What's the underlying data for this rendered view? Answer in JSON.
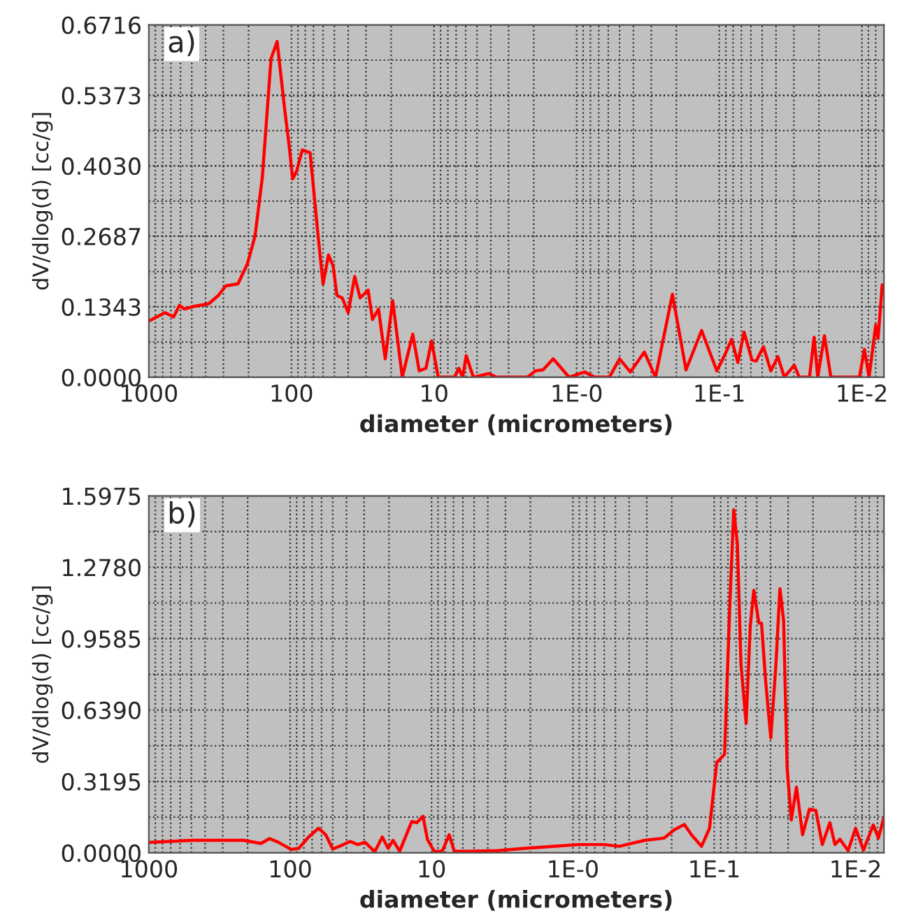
{
  "chart_data": [
    {
      "type": "line",
      "annotations": [
        "a)"
      ],
      "xlabel": "diameter (micrometers)",
      "ylabel": "dV/dlog(d) [cc/g]",
      "log": "x",
      "grid": true,
      "legend": false,
      "xlim": [
        1000,
        0.007
      ],
      "xticks": [
        1000,
        100,
        10,
        {
          "value": 1,
          "label": "1E-0"
        },
        {
          "value": 0.1,
          "label": "1E-1"
        },
        {
          "value": 0.01,
          "label": "1E-2"
        }
      ],
      "ylim": [
        0,
        0.6716
      ],
      "yticks": [
        {
          "value": 0,
          "label": "0.0000"
        },
        0.1343,
        0.2687,
        {
          "value": 0.403,
          "label": "0.4030"
        },
        0.5373,
        0.6716
      ],
      "series": [
        {
          "color": "#ff0000",
          "x": [
            1000,
            771,
            670,
            610,
            564,
            482,
            380,
            325,
            289,
            237,
            203,
            180,
            160,
            139,
            126,
            112,
            104,
            98,
            92,
            84,
            74,
            65,
            60,
            55,
            51,
            48,
            44,
            40,
            36,
            33,
            29,
            27,
            24.5,
            22,
            19.5,
            16.7,
            14.1,
            12.7,
            11.4,
            10.4,
            9.35,
            7.2,
            6.7,
            6.3,
            5.95,
            5.3,
            4.15,
            3.66,
            2.21,
            1.95,
            1.72,
            1.46,
            1.13,
            0.88,
            0.75,
            0.59,
            0.5,
            0.42,
            0.335,
            0.28,
            0.213,
            0.171,
            0.133,
            0.104,
            0.092,
            0.082,
            0.074,
            0.067,
            0.059,
            0.055,
            0.049,
            0.0435,
            0.0388,
            0.035,
            0.0298,
            0.0275,
            0.0233,
            0.0216,
            0.0204,
            0.0183,
            0.0165,
            0.0104,
            0.0096,
            0.0089,
            0.008,
            0.0077,
            0.0072
          ],
          "values": [
            0.107,
            0.123,
            0.115,
            0.137,
            0.13,
            0.135,
            0.14,
            0.156,
            0.174,
            0.178,
            0.217,
            0.269,
            0.381,
            0.607,
            0.64,
            0.515,
            0.443,
            0.378,
            0.392,
            0.433,
            0.428,
            0.269,
            0.178,
            0.233,
            0.212,
            0.156,
            0.151,
            0.123,
            0.192,
            0.151,
            0.166,
            0.11,
            0.13,
            0.035,
            0.146,
            0,
            0.082,
            0.012,
            0.017,
            0.069,
            0,
            0,
            0.017,
            0,
            0.041,
            0,
            0.007,
            0,
            0,
            0.012,
            0.014,
            0.035,
            0,
            0.01,
            0,
            0,
            0.035,
            0.01,
            0.048,
            0,
            0.158,
            0.014,
            0.089,
            0.012,
            0.041,
            0.072,
            0.028,
            0.086,
            0.033,
            0.031,
            0.058,
            0.012,
            0.039,
            0,
            0.023,
            0,
            0,
            0.076,
            0,
            0.079,
            0,
            0,
            0.053,
            0,
            0.099,
            0.074,
            0.176
          ]
        }
      ]
    },
    {
      "type": "line",
      "annotations": [
        "b)"
      ],
      "xlabel": "diameter (micrometers)",
      "ylabel": "dV/dlog(d) [cc/g]",
      "log": "x",
      "grid": true,
      "legend": false,
      "xlim": [
        1000,
        0.0063
      ],
      "xticks": [
        1000,
        100,
        10,
        {
          "value": 1,
          "label": "1E-0"
        },
        {
          "value": 0.1,
          "label": "1E-1"
        },
        {
          "value": 0.01,
          "label": "1E-2"
        }
      ],
      "ylim": [
        0,
        1.5975
      ],
      "yticks": [
        {
          "value": 0,
          "label": "0.0000"
        },
        0.3195,
        {
          "value": 0.639,
          "label": "0.6390"
        },
        0.9585,
        {
          "value": 1.278,
          "label": "1.2780"
        },
        1.5975
      ],
      "series": [
        {
          "color": "#ff0000",
          "x": [
            1000,
            489,
            215,
            161,
            140,
            121,
            98.4,
            87,
            74,
            63,
            56,
            50,
            42,
            37.6,
            33.3,
            29.5,
            25.2,
            22.3,
            20.3,
            18.7,
            16.8,
            13.8,
            12.7,
            11.5,
            10.7,
            9.6,
            8.4,
            7.5,
            6.9,
            5.4,
            3.4,
            2.19,
            1.4,
            0.91,
            0.6,
            0.47,
            0.31,
            0.226,
            0.192,
            0.163,
            0.145,
            0.123,
            0.108,
            0.096,
            0.0845,
            0.0778,
            0.0728,
            0.0686,
            0.0647,
            0.0595,
            0.0556,
            0.0525,
            0.0483,
            0.0463,
            0.0433,
            0.0398,
            0.0366,
            0.0343,
            0.0323,
            0.0305,
            0.0285,
            0.0262,
            0.0237,
            0.0212,
            0.0191,
            0.0172,
            0.0152,
            0.014,
            0.0129,
            0.0113,
            0.01,
            0.0088,
            0.0075,
            0.0069,
            0.0063
          ],
          "values": [
            0.047,
            0.056,
            0.056,
            0.042,
            0.064,
            0.047,
            0.015,
            0.02,
            0.071,
            0.11,
            0.081,
            0.017,
            0.037,
            0.051,
            0.037,
            0.047,
            0.005,
            0.071,
            0.02,
            0.056,
            0.007,
            0.14,
            0.135,
            0.164,
            0.061,
            0.007,
            0.007,
            0.081,
            0.007,
            0.007,
            0.01,
            0.02,
            0.029,
            0.037,
            0.037,
            0.029,
            0.056,
            0.066,
            0.103,
            0.127,
            0.081,
            0.029,
            0.11,
            0.404,
            0.441,
            1.089,
            1.535,
            1.383,
            0.845,
            0.58,
            1.016,
            1.175,
            1.028,
            1.028,
            0.771,
            0.514,
            0.845,
            1.182,
            1.04,
            0.379,
            0.147,
            0.294,
            0.081,
            0.196,
            0.189,
            0.037,
            0.135,
            0.037,
            0.061,
            0.01,
            0.11,
            0.012,
            0.125,
            0.066,
            0.159
          ]
        }
      ]
    }
  ]
}
